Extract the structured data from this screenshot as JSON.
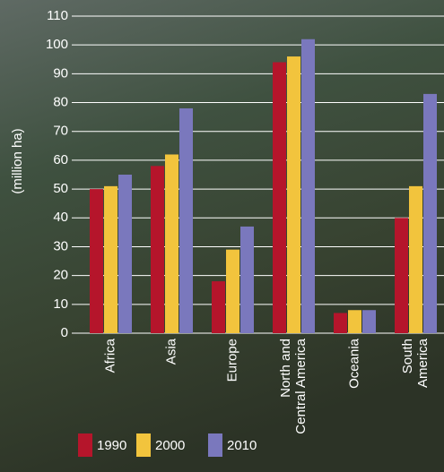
{
  "chart_data": {
    "type": "bar",
    "y_label": "(million ha)",
    "categories": [
      "Africa",
      "Asia",
      "Europe",
      "North and\nCentral America",
      "Oceania",
      "South\nAmerica"
    ],
    "series": [
      {
        "name": "1990",
        "color": "#b5152b",
        "values": [
          50,
          58,
          18,
          94,
          7,
          40
        ]
      },
      {
        "name": "2000",
        "color": "#f2c43d",
        "values": [
          51,
          62,
          29,
          96,
          8,
          51
        ]
      },
      {
        "name": "2010",
        "color": "#7a78bd",
        "values": [
          55,
          78,
          37,
          102,
          8,
          83
        ]
      }
    ],
    "ylim": [
      0,
      110
    ],
    "yticks": [
      0,
      10,
      20,
      30,
      40,
      50,
      60,
      70,
      80,
      90,
      100,
      110
    ],
    "grid": true
  }
}
